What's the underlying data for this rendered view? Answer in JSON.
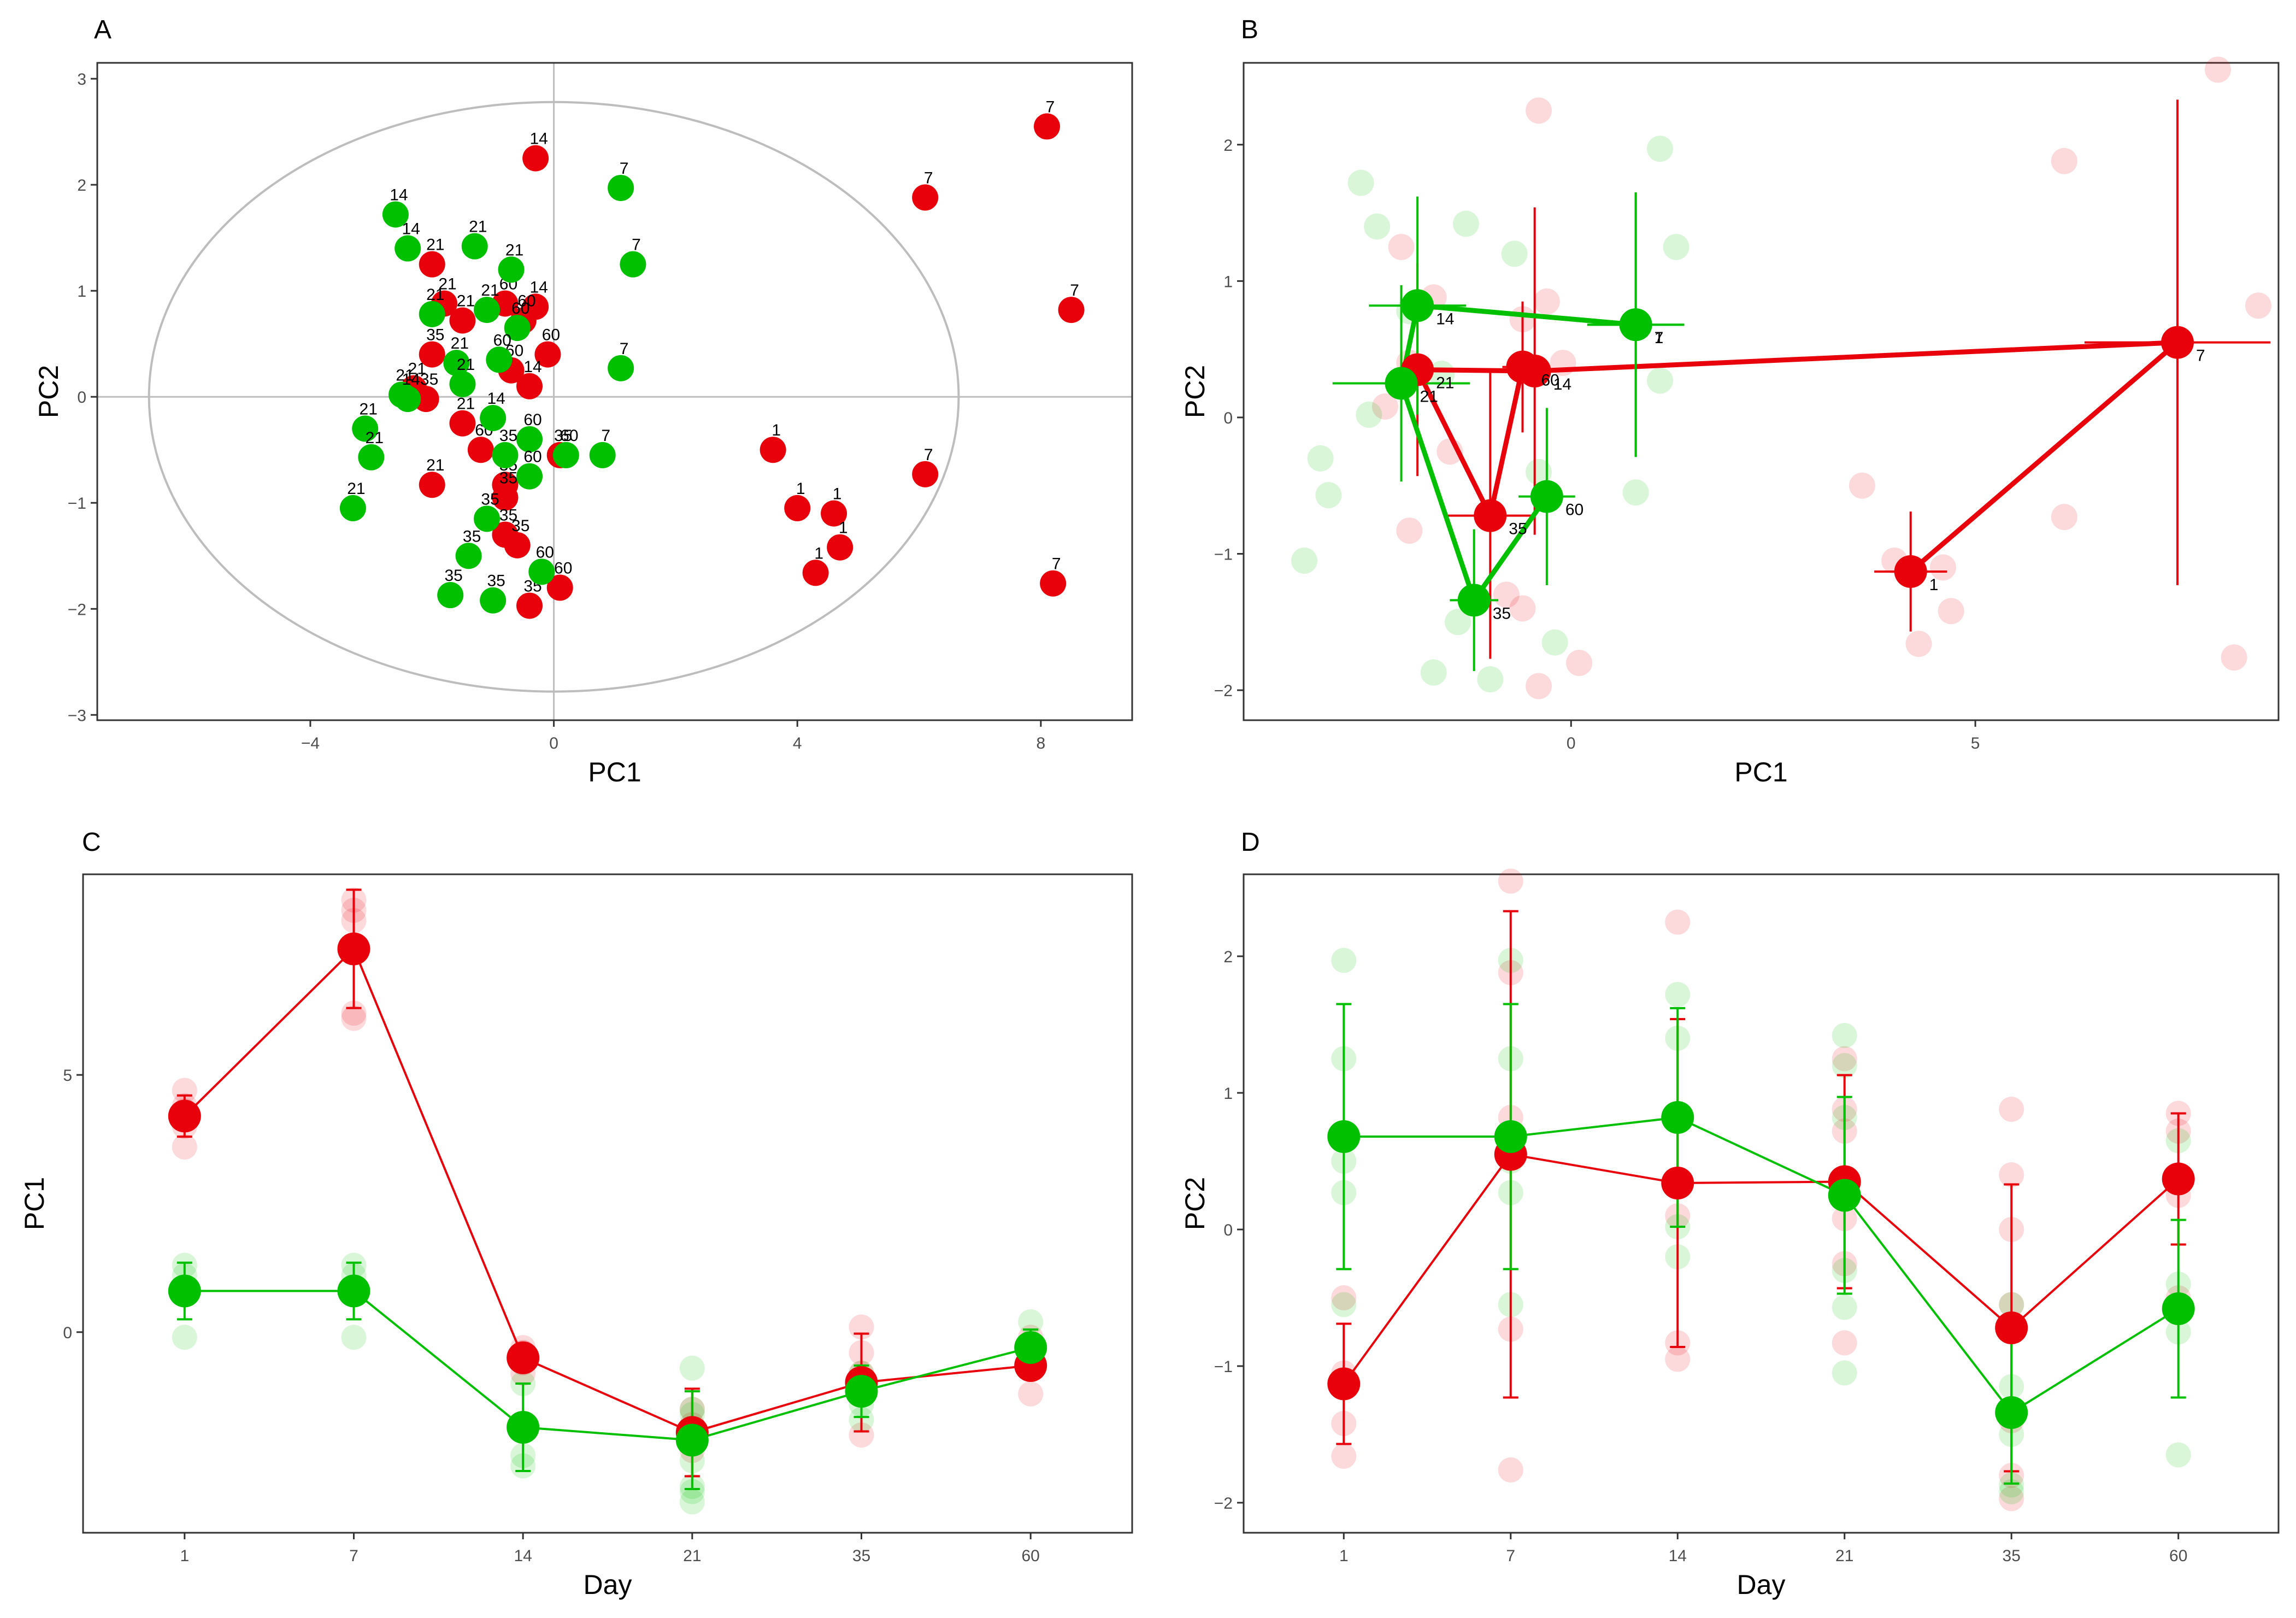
{
  "figure": {
    "panel_labels": [
      "A",
      "B",
      "C",
      "D"
    ],
    "colors": {
      "red": "#e8000b",
      "green": "#00c000",
      "ellipse": "#bdbdbd",
      "axis_line": "#bdbdbd"
    }
  },
  "chart_data": [
    {
      "panel": "A",
      "type": "scatter",
      "title": "",
      "xlabel": "PC1",
      "ylabel": "PC2",
      "xlim": [
        -7.5,
        9.5
      ],
      "ylim": [
        -3.05,
        3.15
      ],
      "xticks": [
        -4,
        0,
        4,
        8
      ],
      "xtick_labels": [
        "−4",
        "0",
        "4",
        "8"
      ],
      "yticks": [
        -3,
        -2,
        -1,
        0,
        1,
        2,
        3
      ],
      "ytick_labels": [
        "−3",
        "−2",
        "−1",
        "0",
        "1",
        "2",
        "3"
      ],
      "ellipse": {
        "cx": 0,
        "cy": 0,
        "rx": 6.65,
        "ry": 2.78
      },
      "series": [
        {
          "name": "red",
          "points": [
            {
              "x": -0.3,
              "y": 2.25,
              "label": "14"
            },
            {
              "x": 6.1,
              "y": 1.88,
              "label": "7"
            },
            {
              "x": 8.1,
              "y": 2.55,
              "label": "7"
            },
            {
              "x": 8.5,
              "y": 0.82,
              "label": "7"
            },
            {
              "x": 6.1,
              "y": -0.73,
              "label": "7"
            },
            {
              "x": 8.2,
              "y": -1.76,
              "label": "7"
            },
            {
              "x": 3.6,
              "y": -0.5,
              "label": "1"
            },
            {
              "x": 4.0,
              "y": -1.05,
              "label": "1"
            },
            {
              "x": 4.6,
              "y": -1.1,
              "label": "1"
            },
            {
              "x": 4.7,
              "y": -1.42,
              "label": "1"
            },
            {
              "x": 4.3,
              "y": -1.66,
              "label": "1"
            },
            {
              "x": -2.0,
              "y": 1.25,
              "label": "21"
            },
            {
              "x": -1.8,
              "y": 0.88,
              "label": "21"
            },
            {
              "x": -1.5,
              "y": 0.72,
              "label": "21"
            },
            {
              "x": -0.8,
              "y": 0.88,
              "label": "60"
            },
            {
              "x": -0.3,
              "y": 0.85,
              "label": "14"
            },
            {
              "x": -0.5,
              "y": 0.72,
              "label": "60"
            },
            {
              "x": -0.1,
              "y": 0.4,
              "label": "60"
            },
            {
              "x": -0.7,
              "y": 0.25,
              "label": "60"
            },
            {
              "x": -0.4,
              "y": 0.1,
              "label": "14"
            },
            {
              "x": -2.0,
              "y": 0.4,
              "label": "35"
            },
            {
              "x": -2.3,
              "y": 0.08,
              "label": "21"
            },
            {
              "x": -2.1,
              "y": -0.02,
              "label": "35"
            },
            {
              "x": -1.5,
              "y": -0.25,
              "label": "21"
            },
            {
              "x": -1.2,
              "y": -0.5,
              "label": "60"
            },
            {
              "x": 0.1,
              "y": -0.55,
              "label": "35"
            },
            {
              "x": -2.0,
              "y": -0.83,
              "label": "21"
            },
            {
              "x": -0.8,
              "y": -0.83,
              "label": "35"
            },
            {
              "x": -0.8,
              "y": -0.95,
              "label": "35"
            },
            {
              "x": -0.8,
              "y": -1.3,
              "label": "35"
            },
            {
              "x": -0.6,
              "y": -1.4,
              "label": "35"
            },
            {
              "x": 0.1,
              "y": -1.8,
              "label": "60"
            },
            {
              "x": -0.4,
              "y": -1.97,
              "label": "35"
            }
          ]
        },
        {
          "name": "green",
          "points": [
            {
              "x": 1.1,
              "y": 1.97,
              "label": "7"
            },
            {
              "x": 1.3,
              "y": 1.25,
              "label": "7"
            },
            {
              "x": 1.1,
              "y": 0.27,
              "label": "7"
            },
            {
              "x": 0.8,
              "y": -0.55,
              "label": "7"
            },
            {
              "x": -2.6,
              "y": 1.72,
              "label": "14"
            },
            {
              "x": -2.4,
              "y": 1.4,
              "label": "14"
            },
            {
              "x": -1.3,
              "y": 1.42,
              "label": "21"
            },
            {
              "x": -0.7,
              "y": 1.2,
              "label": "21"
            },
            {
              "x": -1.1,
              "y": 0.82,
              "label": "21"
            },
            {
              "x": -2.0,
              "y": 0.78,
              "label": "21"
            },
            {
              "x": -0.6,
              "y": 0.65,
              "label": "60"
            },
            {
              "x": -1.6,
              "y": 0.32,
              "label": "21"
            },
            {
              "x": -0.9,
              "y": 0.35,
              "label": "60"
            },
            {
              "x": -1.5,
              "y": 0.12,
              "label": "21"
            },
            {
              "x": -2.5,
              "y": 0.02,
              "label": "21"
            },
            {
              "x": -2.4,
              "y": -0.02,
              "label": "14"
            },
            {
              "x": -3.1,
              "y": -0.3,
              "label": "21"
            },
            {
              "x": -3.0,
              "y": -0.57,
              "label": "21"
            },
            {
              "x": -3.3,
              "y": -1.05,
              "label": "21"
            },
            {
              "x": -1.0,
              "y": -0.2,
              "label": "14"
            },
            {
              "x": -0.4,
              "y": -0.4,
              "label": "60"
            },
            {
              "x": 0.2,
              "y": -0.55,
              "label": "60"
            },
            {
              "x": -0.4,
              "y": -0.75,
              "label": "60"
            },
            {
              "x": -0.8,
              "y": -0.55,
              "label": "35"
            },
            {
              "x": -1.1,
              "y": -1.15,
              "label": "35"
            },
            {
              "x": -1.4,
              "y": -1.5,
              "label": "35"
            },
            {
              "x": -1.7,
              "y": -1.87,
              "label": "35"
            },
            {
              "x": -1.0,
              "y": -1.92,
              "label": "35"
            },
            {
              "x": -0.2,
              "y": -1.65,
              "label": "60"
            }
          ]
        }
      ]
    },
    {
      "panel": "B",
      "type": "scatter",
      "title": "",
      "xlabel": "PC1",
      "ylabel": "PC2",
      "xlim": [
        -4.05,
        8.75
      ],
      "ylim": [
        -2.22,
        2.6
      ],
      "xticks": [
        0,
        5
      ],
      "xtick_labels": [
        "0",
        "5"
      ],
      "yticks": [
        -2,
        -1,
        0,
        1,
        2
      ],
      "ytick_labels": [
        "−2",
        "−1",
        "0",
        "1",
        "2"
      ],
      "series": [
        {
          "name": "red",
          "path": [
            "1",
            "7",
            "14",
            "21",
            "35",
            "60"
          ],
          "means": [
            {
              "label": "1",
              "x": 4.2,
              "y": -1.13,
              "xerr": 0.45,
              "yerr": 0.44
            },
            {
              "label": "7",
              "x": 7.5,
              "y": 0.55,
              "xerr": 1.15,
              "yerr": 1.78
            },
            {
              "label": "14",
              "x": -0.45,
              "y": 0.34,
              "xerr": 0.25,
              "yerr": 1.2
            },
            {
              "label": "21",
              "x": -1.9,
              "y": 0.35,
              "xerr": 0.2,
              "yerr": 0.78
            },
            {
              "label": "35",
              "x": -1.0,
              "y": -0.72,
              "xerr": 0.55,
              "yerr": 1.05
            },
            {
              "label": "60",
              "x": -0.6,
              "y": 0.37,
              "xerr": 0.25,
              "yerr": 0.48
            }
          ],
          "faded": [
            [
              8.0,
              2.55
            ],
            [
              6.1,
              1.88
            ],
            [
              8.5,
              0.82
            ],
            [
              6.1,
              -0.73
            ],
            [
              8.2,
              -1.76
            ],
            [
              3.6,
              -0.5
            ],
            [
              4.0,
              -1.05
            ],
            [
              4.6,
              -1.1
            ],
            [
              4.7,
              -1.42
            ],
            [
              4.3,
              -1.66
            ],
            [
              -0.4,
              2.25
            ],
            [
              -2.1,
              1.25
            ],
            [
              -0.3,
              0.85
            ],
            [
              -1.7,
              0.88
            ],
            [
              -0.6,
              0.72
            ],
            [
              -0.1,
              0.4
            ],
            [
              -2.0,
              0.4
            ],
            [
              -2.3,
              0.08
            ],
            [
              -1.5,
              -0.25
            ],
            [
              -2.0,
              -0.83
            ],
            [
              -0.8,
              -1.3
            ],
            [
              -0.4,
              -1.97
            ],
            [
              0.1,
              -1.8
            ],
            [
              -0.6,
              -1.4
            ]
          ]
        },
        {
          "name": "green",
          "path": [
            "1",
            "7",
            "14",
            "21",
            "35",
            "60"
          ],
          "means": [
            {
              "label": "1",
              "x": 0.8,
              "y": 0.68,
              "xerr": 0.6,
              "yerr": 0.97
            },
            {
              "label": "7",
              "x": 0.8,
              "y": 0.68,
              "xerr": 0.6,
              "yerr": 0.97
            },
            {
              "label": "14",
              "x": -1.9,
              "y": 0.82,
              "xerr": 0.6,
              "yerr": 0.8
            },
            {
              "label": "21",
              "x": -2.1,
              "y": 0.25,
              "xerr": 0.85,
              "yerr": 0.72
            },
            {
              "label": "35",
              "x": -1.2,
              "y": -1.34,
              "xerr": 0.3,
              "yerr": 0.52
            },
            {
              "label": "60",
              "x": -0.3,
              "y": -0.58,
              "xerr": 0.35,
              "yerr": 0.65
            }
          ],
          "faded": [
            [
              1.1,
              1.97
            ],
            [
              1.3,
              1.25
            ],
            [
              1.1,
              0.27
            ],
            [
              0.8,
              -0.55
            ],
            [
              -2.6,
              1.72
            ],
            [
              -2.4,
              1.4
            ],
            [
              -1.3,
              1.42
            ],
            [
              -0.7,
              1.2
            ],
            [
              -2.0,
              0.78
            ],
            [
              -1.6,
              0.32
            ],
            [
              -2.5,
              0.02
            ],
            [
              -3.1,
              -0.3
            ],
            [
              -3.0,
              -0.57
            ],
            [
              -3.3,
              -1.05
            ],
            [
              -0.4,
              -0.4
            ],
            [
              -1.4,
              -1.5
            ],
            [
              -1.7,
              -1.87
            ],
            [
              -1.0,
              -1.92
            ],
            [
              -0.2,
              -1.65
            ]
          ]
        }
      ]
    },
    {
      "panel": "C",
      "type": "line",
      "title": "",
      "xlabel": "Day",
      "ylabel": "PC1",
      "categories": [
        "1",
        "7",
        "14",
        "21",
        "35",
        "60"
      ],
      "ylim": [
        -3.9,
        8.9
      ],
      "yticks": [
        0,
        5
      ],
      "ytick_labels": [
        "0",
        "5"
      ],
      "series": [
        {
          "name": "red",
          "values": [
            4.2,
            7.45,
            -0.5,
            -1.95,
            -0.98,
            -0.65
          ],
          "errors": [
            0.4,
            1.15,
            0.25,
            0.85,
            0.95,
            0.25
          ],
          "faded": [
            [
              4.7,
              4.4,
              3.6,
              4.0,
              4.3
            ],
            [
              8.2,
              8.0,
              6.2,
              6.1,
              8.4
            ],
            [
              -0.3,
              -0.4,
              -0.6,
              -0.8,
              -0.4
            ],
            [
              -1.5,
              -2.0,
              -2.3,
              -1.8,
              -2.1
            ],
            [
              0.1,
              -0.8,
              -1.0,
              -2.0,
              -0.4,
              -1.2
            ],
            [
              -0.1,
              -0.5,
              -0.7,
              -1.2,
              -0.6
            ]
          ]
        },
        {
          "name": "green",
          "values": [
            0.8,
            0.8,
            -1.85,
            -2.1,
            -1.15,
            -0.3
          ],
          "errors": [
            0.55,
            0.55,
            0.85,
            0.95,
            0.5,
            0.35
          ],
          "faded": [
            [
              1.3,
              1.1,
              0.8,
              -0.1
            ],
            [
              1.3,
              1.1,
              0.8,
              -0.1
            ],
            [
              -2.6,
              -2.4,
              -1.0
            ],
            [
              -0.7,
              -1.5,
              -2.5,
              -3.1,
              -3.0,
              -3.3,
              -1.6
            ],
            [
              -0.8,
              -1.1,
              -1.4,
              -1.7,
              -1.0
            ],
            [
              0.2,
              -0.4,
              -0.2,
              -0.6
            ]
          ]
        }
      ]
    },
    {
      "panel": "D",
      "type": "line",
      "title": "",
      "xlabel": "Day",
      "ylabel": "PC2",
      "categories": [
        "1",
        "7",
        "14",
        "21",
        "35",
        "60"
      ],
      "ylim": [
        -2.22,
        2.6
      ],
      "yticks": [
        -2,
        -1,
        0,
        1,
        2
      ],
      "ytick_labels": [
        "−2",
        "−1",
        "0",
        "1",
        "2"
      ],
      "series": [
        {
          "name": "red",
          "values": [
            -1.13,
            0.55,
            0.34,
            0.35,
            -0.72,
            0.37
          ],
          "errors": [
            0.44,
            1.78,
            1.2,
            0.78,
            1.05,
            0.48
          ],
          "faded": [
            [
              -0.5,
              -1.05,
              -1.1,
              -1.42,
              -1.66
            ],
            [
              2.55,
              1.88,
              0.82,
              -0.73,
              -1.76
            ],
            [
              2.25,
              0.85,
              0.1,
              -0.83,
              -0.95
            ],
            [
              1.25,
              0.88,
              0.72,
              0.08,
              -0.25,
              -0.83
            ],
            [
              0.88,
              0.4,
              0.0,
              -0.55,
              -1.4,
              -1.8,
              -1.97
            ],
            [
              0.85,
              0.72,
              0.4,
              0.25,
              -0.5
            ]
          ]
        },
        {
          "name": "green",
          "values": [
            0.68,
            0.68,
            0.82,
            0.25,
            -1.34,
            -0.58
          ],
          "errors": [
            0.97,
            0.97,
            0.8,
            0.72,
            0.52,
            0.65
          ],
          "faded": [
            [
              1.97,
              1.25,
              0.5,
              0.27,
              -0.55
            ],
            [
              1.97,
              1.25,
              0.5,
              0.27,
              -0.55
            ],
            [
              1.72,
              1.4,
              0.02,
              -0.2
            ],
            [
              1.42,
              1.2,
              0.82,
              0.32,
              -0.3,
              -0.57,
              -1.05
            ],
            [
              -0.55,
              -1.15,
              -1.5,
              -1.87,
              -1.92
            ],
            [
              0.65,
              0.35,
              -0.4,
              -0.75,
              -1.65
            ]
          ]
        }
      ]
    }
  ]
}
